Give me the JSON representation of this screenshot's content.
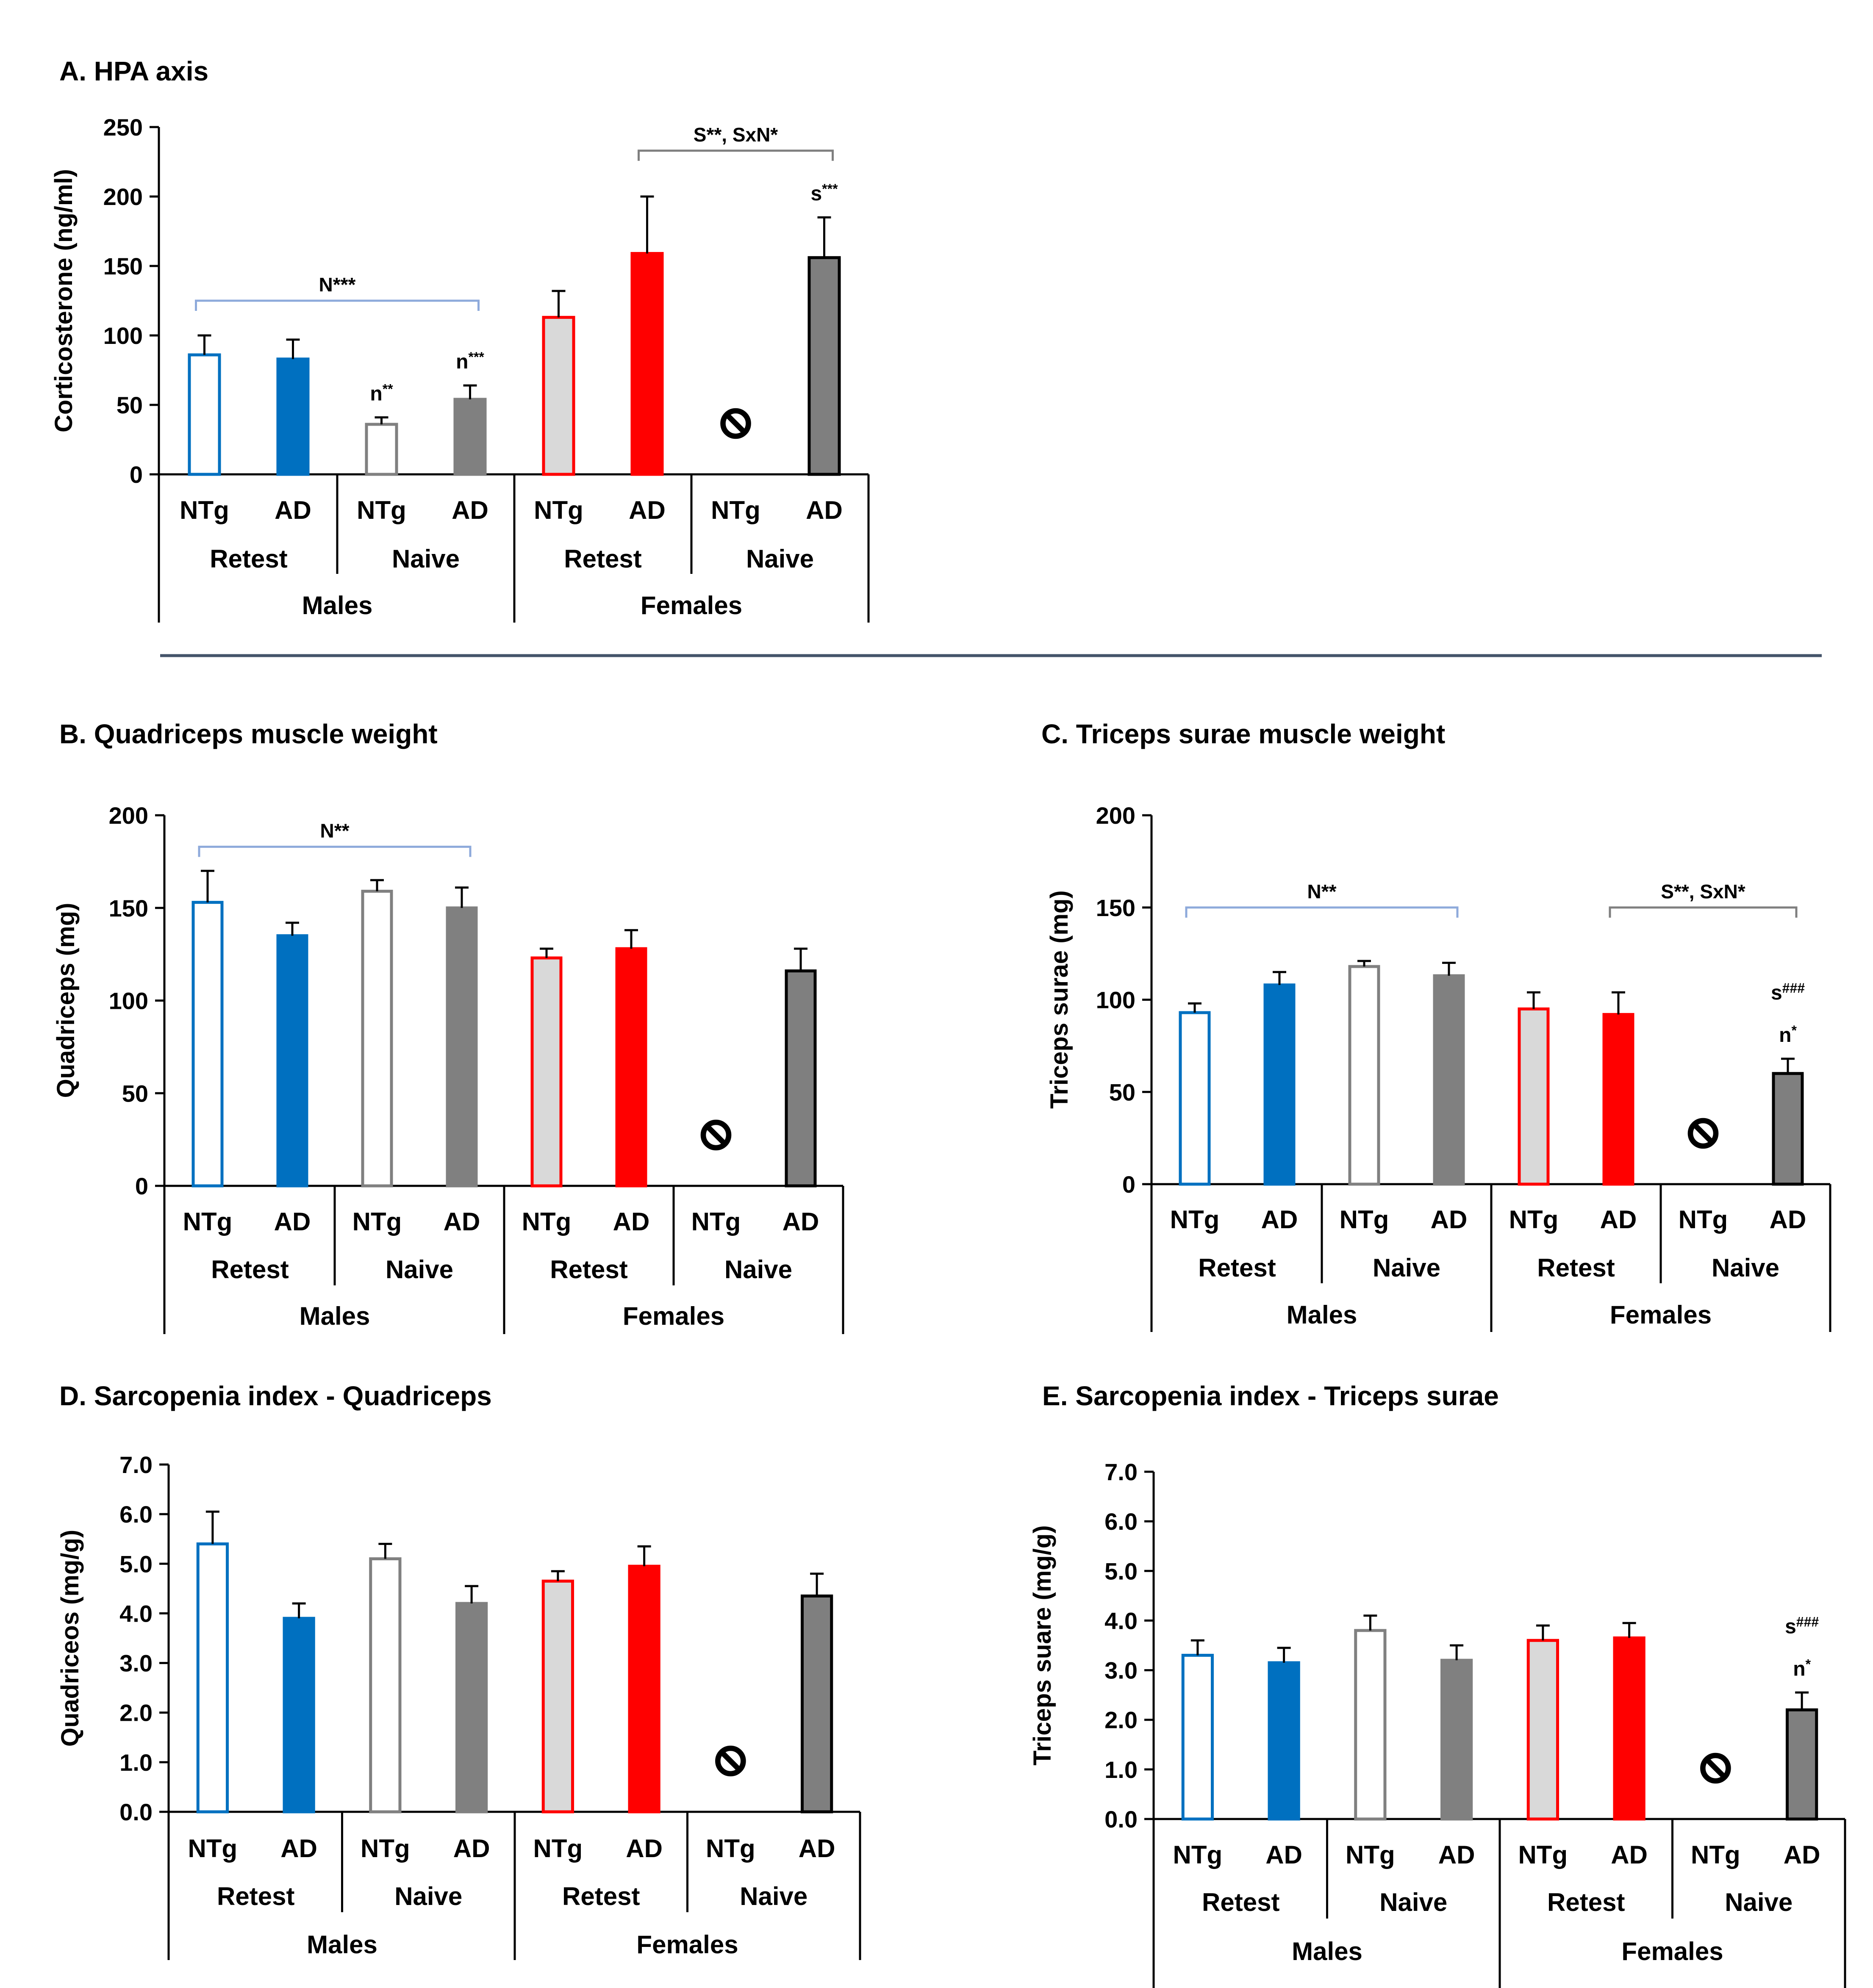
{
  "colors": {
    "males_retest_ntg": {
      "fill": "#ffffff",
      "stroke": "#0070c0"
    },
    "males_retest_ad": {
      "fill": "#0070c0",
      "stroke": "#0070c0"
    },
    "males_naive_ntg": {
      "fill": "#ffffff",
      "stroke": "#808080"
    },
    "males_naive_ad": {
      "fill": "#808080",
      "stroke": "#808080"
    },
    "females_retest_ntg": {
      "fill": "#d9d9d9",
      "stroke": "#ff0000"
    },
    "females_retest_ad": {
      "fill": "#ff0000",
      "stroke": "#ff0000"
    },
    "females_naive_ad": {
      "fill": "#7f7f7f",
      "stroke": "#000000"
    },
    "bracket_blue": "#8eaadb",
    "bracket_gray": "#7f7f7f",
    "divider": "#44546a"
  },
  "icons": {
    "missing_group": "prohibited-icon"
  },
  "chart_data": [
    {
      "id": "A",
      "type": "bar",
      "title": "A. HPA axis",
      "ylabel": "Corticosterone (ng/ml)",
      "ylim": [
        0,
        250
      ],
      "yticks": [
        0,
        50,
        100,
        150,
        200,
        250
      ],
      "ytick_labels": [
        "0",
        "50",
        "100",
        "150",
        "200",
        "250"
      ],
      "categories": [
        "NTg",
        "AD",
        "NTg",
        "AD",
        "NTg",
        "AD",
        "NTg",
        "AD"
      ],
      "groups": [
        "Retest",
        "Naive",
        "Retest",
        "Naive"
      ],
      "sexes": [
        "Males",
        "Females"
      ],
      "values": [
        86,
        83,
        36,
        54,
        113,
        159,
        null,
        156
      ],
      "errors": [
        14,
        14,
        5,
        10,
        19,
        41,
        null,
        29
      ],
      "annotations": [
        {
          "bar": 2,
          "lines": [
            "n**"
          ]
        },
        {
          "bar": 3,
          "lines": [
            "n***"
          ]
        },
        {
          "bar": 7,
          "lines": [
            "s***"
          ]
        }
      ],
      "brackets": [
        {
          "from": 0,
          "to": 3,
          "level": 125,
          "label": "N***",
          "color": "blue"
        },
        {
          "from": 5,
          "to": 7,
          "level": 233,
          "label": "S**, SxN*",
          "color": "gray"
        }
      ]
    },
    {
      "id": "B",
      "type": "bar",
      "title": "B.  Quadriceps muscle weight",
      "ylabel": "Quadriceps (mg)",
      "ylim": [
        0,
        200
      ],
      "yticks": [
        0,
        50,
        100,
        150,
        200
      ],
      "ytick_labels": [
        "0",
        "50",
        "100",
        "150",
        "200"
      ],
      "categories": [
        "NTg",
        "AD",
        "NTg",
        "AD",
        "NTg",
        "AD",
        "NTg",
        "AD"
      ],
      "groups": [
        "Retest",
        "Naive",
        "Retest",
        "Naive"
      ],
      "sexes": [
        "Males",
        "Females"
      ],
      "values": [
        153,
        135,
        159,
        150,
        123,
        128,
        null,
        116
      ],
      "errors": [
        17,
        7,
        6,
        11,
        5,
        10,
        null,
        12
      ],
      "annotations": [],
      "brackets": [
        {
          "from": 0,
          "to": 3,
          "level": 183,
          "label": "N**",
          "color": "blue"
        }
      ]
    },
    {
      "id": "C",
      "type": "bar",
      "title": "C. Triceps surae muscle weight",
      "ylabel": "Triceps surae (mg)",
      "ylim": [
        0,
        200
      ],
      "yticks": [
        0,
        50,
        100,
        150,
        200
      ],
      "ytick_labels": [
        "0",
        "50",
        "100",
        "150",
        "200"
      ],
      "categories": [
        "NTg",
        "AD",
        "NTg",
        "AD",
        "NTg",
        "AD",
        "NTg",
        "AD"
      ],
      "groups": [
        "Retest",
        "Naive",
        "Retest",
        "Naive"
      ],
      "sexes": [
        "Males",
        "Females"
      ],
      "values": [
        93,
        108,
        118,
        113,
        95,
        92,
        null,
        60
      ],
      "errors": [
        5,
        7,
        3,
        7,
        9,
        12,
        null,
        8
      ],
      "annotations": [
        {
          "bar": 7,
          "lines": [
            "s###",
            "n*"
          ]
        }
      ],
      "brackets": [
        {
          "from": 0,
          "to": 3,
          "level": 150,
          "label": "N**",
          "color": "blue"
        },
        {
          "from": 5,
          "to": 7,
          "level": 150,
          "label": "S**, SxN*",
          "color": "gray"
        }
      ]
    },
    {
      "id": "D",
      "type": "bar",
      "title": "D. Sarcopenia index - Quadriceps",
      "ylabel": "Quadriceos (mg/g)",
      "ylim": [
        0,
        7
      ],
      "yticks": [
        0,
        1,
        2,
        3,
        4,
        5,
        6,
        7
      ],
      "ytick_labels": [
        "0.0",
        "1.0",
        "2.0",
        "3.0",
        "4.0",
        "5.0",
        "6.0",
        "7.0"
      ],
      "categories": [
        "NTg",
        "AD",
        "NTg",
        "AD",
        "NTg",
        "AD",
        "NTg",
        "AD"
      ],
      "groups": [
        "Retest",
        "Naive",
        "Retest",
        "Naive"
      ],
      "sexes": [
        "Males",
        "Females"
      ],
      "values": [
        5.4,
        3.9,
        5.1,
        4.2,
        4.65,
        4.95,
        null,
        4.35
      ],
      "errors": [
        0.65,
        0.3,
        0.3,
        0.35,
        0.2,
        0.4,
        null,
        0.45
      ],
      "annotations": [],
      "brackets": []
    },
    {
      "id": "E",
      "type": "bar",
      "title": "E. Sarcopenia index - Triceps surae",
      "ylabel": "Triceps suare (mg/g)",
      "ylim": [
        0,
        7
      ],
      "yticks": [
        0,
        1,
        2,
        3,
        4,
        5,
        6,
        7
      ],
      "ytick_labels": [
        "0.0",
        "1.0",
        "2.0",
        "3.0",
        "4.0",
        "5.0",
        "6.0",
        "7.0"
      ],
      "categories": [
        "NTg",
        "AD",
        "NTg",
        "AD",
        "NTg",
        "AD",
        "NTg",
        "AD"
      ],
      "groups": [
        "Retest",
        "Naive",
        "Retest",
        "Naive"
      ],
      "sexes": [
        "Males",
        "Females"
      ],
      "values": [
        3.3,
        3.15,
        3.8,
        3.2,
        3.6,
        3.65,
        null,
        2.2
      ],
      "errors": [
        0.3,
        0.3,
        0.3,
        0.3,
        0.3,
        0.3,
        null,
        0.35
      ],
      "annotations": [
        {
          "bar": 7,
          "lines": [
            "s###",
            "n*"
          ]
        }
      ],
      "brackets": []
    }
  ]
}
